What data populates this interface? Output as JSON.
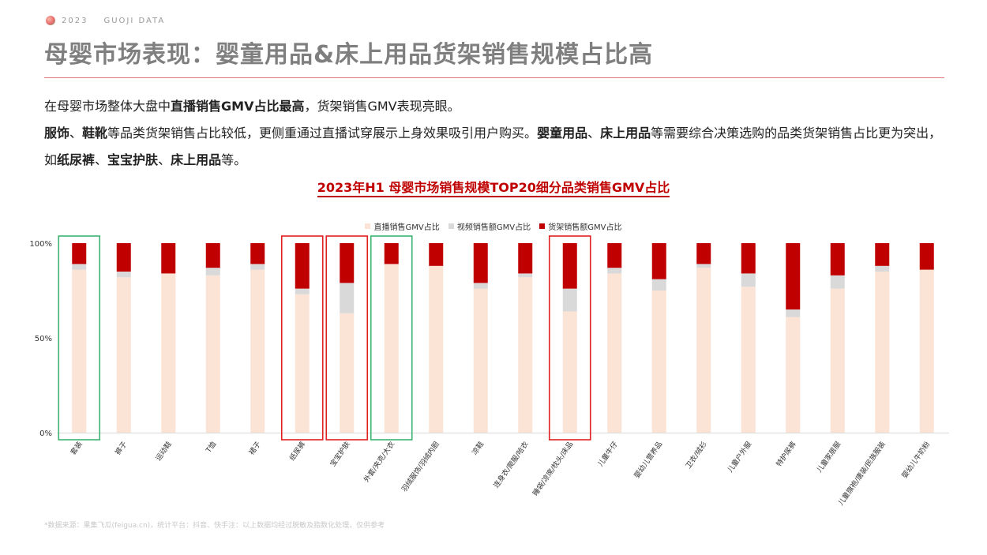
{
  "brand": {
    "year": "2023",
    "name": "GUOJI DATA"
  },
  "title": "母婴市场表现：婴童用品&床上用品货架销售规模占比高",
  "paragraphs": {
    "p1": [
      {
        "t": "在母婴市场整体大盘中",
        "b": false
      },
      {
        "t": "直播销售GMV占比最高",
        "b": true
      },
      {
        "t": "，货架销售GMV表现亮眼。",
        "b": false
      }
    ],
    "p2": [
      {
        "t": "服饰",
        "b": true
      },
      {
        "t": "、",
        "b": false
      },
      {
        "t": "鞋靴",
        "b": true
      },
      {
        "t": "等品类货架销售占比较低，更侧重通过直播试穿展示上身效果吸引用户购买。",
        "b": false
      },
      {
        "t": "婴童用品",
        "b": true
      },
      {
        "t": "、",
        "b": false
      },
      {
        "t": "床上用品",
        "b": true
      },
      {
        "t": "等需要综合决策选购的品类货架销售占比更为突出，如",
        "b": false
      },
      {
        "t": "纸尿裤",
        "b": true
      },
      {
        "t": "、",
        "b": false
      },
      {
        "t": "宝宝护肤",
        "b": true
      },
      {
        "t": "、",
        "b": false
      },
      {
        "t": "床上用品",
        "b": true
      },
      {
        "t": "等。",
        "b": false
      }
    ]
  },
  "chart_title": "2023年H1 母婴市场销售规模TOP20细分品类销售GMV占比",
  "legend": {
    "live": "直播销售GMV占比",
    "video": "视频销售额GMV占比",
    "shelf": "货架销售额GMV占比"
  },
  "colors": {
    "live": "#fbe3d6",
    "video": "#d9d9d9",
    "shelf": "#c00000",
    "green_box": "#3cb371",
    "red_box": "#e02020"
  },
  "chart_data": {
    "type": "bar",
    "stacked": true,
    "categories": [
      "套装",
      "裤子",
      "运动鞋",
      "T恤",
      "裙子",
      "纸尿裤",
      "宝宝护肤",
      "外套/夹克/大衣",
      "羽绒服饰/羽绒内胆",
      "凉鞋",
      "连身衣/爬服/哈衣",
      "睡袋/凉席/枕头/床品",
      "儿童牛仔",
      "婴幼儿营养品",
      "卫衣/绒衫",
      "儿童户外服",
      "特护尿裤",
      "儿童家居服",
      "儿童旗袍/唐装/民族服装",
      "婴幼儿牛奶粉"
    ],
    "series": [
      {
        "name": "直播销售GMV占比",
        "values": [
          86,
          82,
          84,
          83,
          86,
          73,
          63,
          89,
          88,
          76,
          82,
          64,
          84,
          75,
          87,
          77,
          61,
          76,
          85,
          86
        ]
      },
      {
        "name": "视频销售额GMV占比",
        "values": [
          3,
          3,
          0,
          4,
          3,
          3,
          16,
          0,
          0,
          3,
          2,
          12,
          3,
          6,
          2,
          7,
          4,
          7,
          3,
          0
        ]
      },
      {
        "name": "货架销售额GMV占比",
        "values": [
          11,
          15,
          16,
          13,
          11,
          24,
          21,
          11,
          12,
          21,
          16,
          24,
          13,
          19,
          11,
          16,
          35,
          17,
          12,
          14
        ]
      }
    ],
    "ylim": [
      0,
      100
    ],
    "yticks": [
      "0%",
      "50%",
      "100%"
    ],
    "highlight_green": [
      0,
      7
    ],
    "highlight_red": [
      5,
      6,
      11
    ]
  },
  "footnote": "*数据来源：果集飞瓜(feigua.cn)，统计平台：抖音、快手注：以上数据均经过脱敏及指数化处理，仅供参考"
}
